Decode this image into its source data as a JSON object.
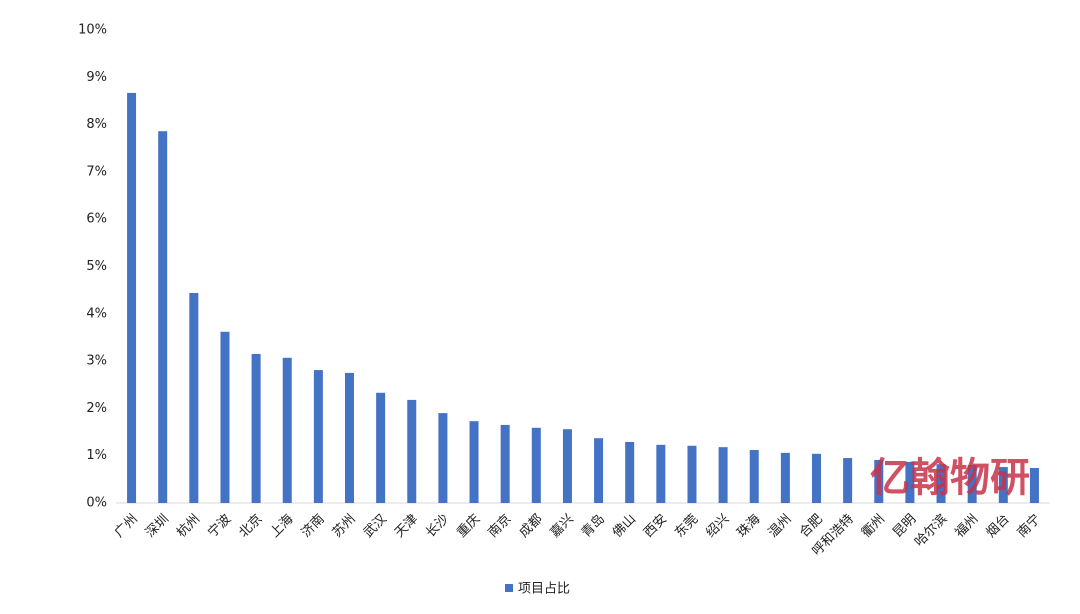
{
  "chart_data": {
    "type": "bar",
    "categories": [
      "广州",
      "深圳",
      "杭州",
      "宁波",
      "北京",
      "上海",
      "济南",
      "苏州",
      "武汉",
      "天津",
      "长沙",
      "重庆",
      "南京",
      "成都",
      "嘉兴",
      "青岛",
      "佛山",
      "西安",
      "东莞",
      "绍兴",
      "珠海",
      "温州",
      "合肥",
      "呼和浩特",
      "衢州",
      "昆明",
      "哈尔滨",
      "福州",
      "烟台",
      "南宁"
    ],
    "series": [
      {
        "name": "项目占比",
        "color": "#4472c4",
        "values": [
          8.67,
          7.86,
          4.44,
          3.62,
          3.15,
          3.07,
          2.81,
          2.75,
          2.33,
          2.18,
          1.9,
          1.73,
          1.65,
          1.59,
          1.56,
          1.37,
          1.29,
          1.23,
          1.21,
          1.18,
          1.12,
          1.06,
          1.04,
          0.95,
          0.91,
          0.87,
          0.82,
          0.8,
          0.76,
          0.74
        ]
      }
    ],
    "ylim": [
      0,
      10
    ],
    "yticks": [
      {
        "value": 0,
        "label": "0%"
      },
      {
        "value": 1,
        "label": "1%"
      },
      {
        "value": 2,
        "label": "2%"
      },
      {
        "value": 3,
        "label": "3%"
      },
      {
        "value": 4,
        "label": "4%"
      },
      {
        "value": 5,
        "label": "5%"
      },
      {
        "value": 6,
        "label": "6%"
      },
      {
        "value": 7,
        "label": "7%"
      },
      {
        "value": 8,
        "label": "8%"
      },
      {
        "value": 9,
        "label": "9%"
      },
      {
        "value": 10,
        "label": "10%"
      }
    ],
    "grid": false,
    "legend": "bottom",
    "watermark": "亿翰物研"
  }
}
